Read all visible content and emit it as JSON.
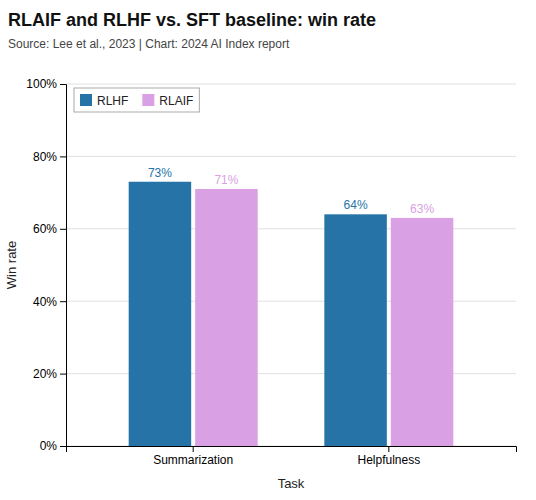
{
  "chart_data": {
    "type": "bar",
    "title": "RLAIF and RLHF vs. SFT baseline: win rate",
    "subtitle": "Source: Lee et al., 2023 | Chart: 2024 AI Index report",
    "x_label": "Task",
    "y_label": "Win rate",
    "categories": [
      "Summarization",
      "Helpfulness"
    ],
    "series": [
      {
        "name": "RLHF",
        "color": "#2674a7",
        "values": [
          0.73,
          0.64
        ],
        "value_labels": [
          "73%",
          "64%"
        ]
      },
      {
        "name": "RLAIF",
        "color": "#d9a0e3",
        "values": [
          0.71,
          0.63
        ],
        "value_labels": [
          "71%",
          "63%"
        ]
      }
    ],
    "ylim": [
      0,
      1.0
    ],
    "yticks": [
      {
        "value": 0.0,
        "label": "0%"
      },
      {
        "value": 0.2,
        "label": "20%"
      },
      {
        "value": 0.4,
        "label": "40%"
      },
      {
        "value": 0.6,
        "label": "60%"
      },
      {
        "value": 0.8,
        "label": "80%"
      },
      {
        "value": 1.0,
        "label": "100%"
      }
    ],
    "grid": true,
    "legend": "upper left",
    "data_labels": true
  }
}
